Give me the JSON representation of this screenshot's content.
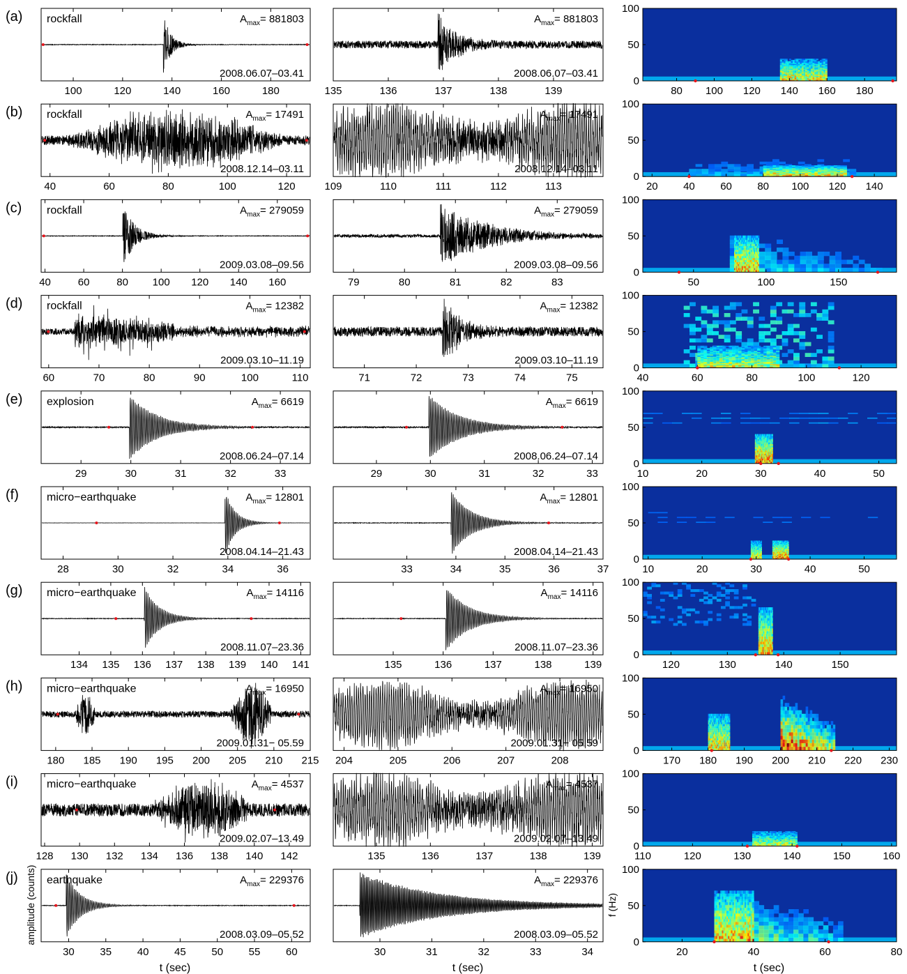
{
  "figure": {
    "ylabel_amplitude": "amplitude (counts)",
    "ylabel_freq": "f (Hz)",
    "xlabel": "t (sec)",
    "amax_prefix": "A",
    "amax_sub": "max"
  },
  "colors": {
    "trace": "#000000",
    "marker": "#e8141b",
    "spec_bg": "#0a2f9e",
    "axis": "#000000"
  },
  "chart_data": [
    {
      "panel": "(a)",
      "type": "line",
      "label": "rockfall",
      "amax": "= 881803",
      "date": "2008.06.07–03.41",
      "full": {
        "xlim": [
          87,
          196
        ],
        "ticks": [
          100,
          120,
          140,
          160,
          180
        ],
        "onset": 136.5,
        "dur": 10,
        "pre": 0.01,
        "style": "spike",
        "markers": [
          87.5,
          195
        ]
      },
      "zoom": {
        "xlim": [
          135,
          139.9
        ],
        "ticks": [
          135,
          136,
          137,
          138,
          139
        ],
        "onset": 136.9,
        "dur": 1,
        "pre": 0.12,
        "style": "spike"
      },
      "spec": {
        "xlim": [
          62,
          197
        ],
        "ylim": [
          0,
          100
        ],
        "xticks": [
          80,
          100,
          120,
          140,
          160,
          180
        ],
        "yticks": [
          0,
          50,
          100
        ],
        "markers": [
          90,
          195
        ],
        "blobs": [
          [
            128,
            197,
            0,
            100,
            0.15,
            "wedge"
          ],
          [
            135,
            160,
            0,
            30,
            0.8,
            "hot"
          ]
        ]
      }
    },
    {
      "panel": "(b)",
      "type": "line",
      "label": "rockfall",
      "amax": "= 17491",
      "date": "2008.12.14–03.11",
      "full": {
        "xlim": [
          37,
          128
        ],
        "ticks": [
          40,
          60,
          80,
          100,
          120
        ],
        "onset": 45,
        "dur": 75,
        "pre": 0.15,
        "style": "tremor",
        "markers": [
          38,
          127
        ]
      },
      "zoom": {
        "xlim": [
          109,
          113.9
        ],
        "ticks": [
          109,
          110,
          111,
          112,
          113
        ],
        "onset": 109,
        "dur": 5,
        "pre": 0.5,
        "style": "osc"
      },
      "spec": {
        "xlim": [
          15,
          152
        ],
        "ylim": [
          0,
          100
        ],
        "xticks": [
          20,
          40,
          60,
          80,
          100,
          120,
          140
        ],
        "yticks": [
          0,
          50,
          100
        ],
        "markers": [
          40,
          128
        ],
        "blobs": [
          [
            40,
            130,
            0,
            60,
            0.3,
            "band"
          ],
          [
            80,
            125,
            0,
            15,
            0.85,
            "hot"
          ]
        ]
      }
    },
    {
      "panel": "(c)",
      "type": "line",
      "label": "rockfall",
      "amax": "= 279059",
      "date": "2009.03.08–09.56",
      "full": {
        "xlim": [
          38,
          177
        ],
        "ticks": [
          40,
          60,
          80,
          100,
          120,
          140,
          160
        ],
        "onset": 80,
        "dur": 20,
        "pre": 0.01,
        "style": "spike",
        "markers": [
          39,
          176
        ]
      },
      "zoom": {
        "xlim": [
          78.6,
          83.9
        ],
        "ticks": [
          79,
          80,
          81,
          82,
          83
        ],
        "onset": 80.7,
        "dur": 3,
        "pre": 0.05,
        "style": "spike"
      },
      "spec": {
        "xlim": [
          15,
          190
        ],
        "ylim": [
          0,
          100
        ],
        "xticks": [
          50,
          100,
          150
        ],
        "yticks": [
          0,
          50,
          100
        ],
        "markers": [
          40,
          177
        ],
        "blobs": [
          [
            75,
            180,
            0,
            100,
            0.35,
            "wedge"
          ],
          [
            78,
            95,
            0,
            50,
            0.9,
            "hot"
          ]
        ]
      }
    },
    {
      "panel": "(d)",
      "type": "line",
      "label": "rockfall",
      "amax": "= 12382",
      "date": "2009.03.10–11.19",
      "full": {
        "xlim": [
          58.5,
          112
        ],
        "ticks": [
          60,
          70,
          80,
          90,
          100,
          110
        ],
        "onset": 65,
        "dur": 20,
        "pre": 0.1,
        "style": "bursts",
        "markers": [
          59.8,
          111
        ]
      },
      "zoom": {
        "xlim": [
          70.4,
          75.6
        ],
        "ticks": [
          71,
          72,
          73,
          74,
          75
        ],
        "onset": 72.5,
        "dur": 1.2,
        "pre": 0.15,
        "style": "spike"
      },
      "spec": {
        "xlim": [
          40,
          133
        ],
        "ylim": [
          0,
          100
        ],
        "xticks": [
          40,
          60,
          80,
          100,
          120
        ],
        "yticks": [
          0,
          50,
          100
        ],
        "markers": [
          60,
          112
        ],
        "blobs": [
          [
            55,
            110,
            0,
            90,
            0.45,
            "streaks"
          ],
          [
            60,
            90,
            0,
            30,
            0.75,
            "hot"
          ]
        ]
      }
    },
    {
      "panel": "(e)",
      "type": "line",
      "label": "explosion",
      "amax": "= 6619",
      "date": "2008.06.24–07.14",
      "full": {
        "xlim": [
          28.2,
          33.6
        ],
        "ticks": [
          29,
          30,
          31,
          32,
          33
        ],
        "onset": 29.97,
        "dur": 1.8,
        "pre": 0.02,
        "style": "decay",
        "markers": [
          29.55,
          32.45
        ]
      },
      "zoom": {
        "xlim": [
          28.2,
          33.2
        ],
        "ticks": [
          29,
          30,
          31,
          32,
          33
        ],
        "onset": 29.97,
        "dur": 1.8,
        "pre": 0.02,
        "style": "decay",
        "markers": [
          29.55,
          32.45
        ]
      },
      "spec": {
        "xlim": [
          10,
          53
        ],
        "ylim": [
          0,
          100
        ],
        "xticks": [
          10,
          20,
          30,
          40,
          50
        ],
        "yticks": [
          0,
          50,
          100
        ],
        "markers": [
          30,
          33
        ],
        "blobs": [
          [
            29,
            32,
            0,
            40,
            0.95,
            "hot"
          ],
          [
            10,
            53,
            55,
            75,
            0.3,
            "lines"
          ]
        ]
      }
    },
    {
      "panel": "(f)",
      "type": "line",
      "label": "micro−earthquake",
      "amax": "= 12801",
      "date": "2008.04.14–21.43",
      "full": {
        "xlim": [
          27.2,
          37
        ],
        "ticks": [
          28,
          30,
          32,
          34,
          36
        ],
        "onset": 33.9,
        "dur": 1.2,
        "pre": 0.003,
        "style": "decay",
        "markers": [
          29.2,
          35.9
        ]
      },
      "zoom": {
        "xlim": [
          31.5,
          37
        ],
        "ticks": [
          33,
          34,
          35,
          36,
          37
        ],
        "onset": 33.9,
        "dur": 1.3,
        "pre": 0.01,
        "style": "decay",
        "markers": [
          35.9
        ]
      },
      "spec": {
        "xlim": [
          9,
          56
        ],
        "ylim": [
          0,
          100
        ],
        "xticks": [
          10,
          20,
          30,
          40,
          50
        ],
        "yticks": [
          0,
          50,
          100
        ],
        "markers": [
          29,
          36
        ],
        "blobs": [
          [
            29,
            31,
            0,
            25,
            0.8,
            "hot"
          ],
          [
            33,
            36,
            0,
            25,
            0.95,
            "hot"
          ],
          [
            10,
            56,
            50,
            70,
            0.25,
            "lines"
          ]
        ]
      }
    },
    {
      "panel": "(g)",
      "type": "line",
      "label": "micro−earthquake",
      "amax": "= 14116",
      "date": "2008.11.07–23.36",
      "full": {
        "xlim": [
          132.8,
          141.3
        ],
        "ticks": [
          134,
          135,
          136,
          137,
          138,
          139,
          140,
          141
        ],
        "onset": 136.05,
        "dur": 1.5,
        "pre": 0.01,
        "style": "decay",
        "markers": [
          135.15,
          139.45
        ]
      },
      "zoom": {
        "xlim": [
          133.8,
          139.2
        ],
        "ticks": [
          135,
          136,
          137,
          138,
          139
        ],
        "onset": 136.05,
        "dur": 1.5,
        "pre": 0.01,
        "style": "decay",
        "markers": [
          135.15
        ]
      },
      "spec": {
        "xlim": [
          115,
          160
        ],
        "ylim": [
          0,
          100
        ],
        "xticks": [
          120,
          130,
          140,
          150
        ],
        "yticks": [
          0,
          50,
          100
        ],
        "markers": [
          135,
          139
        ],
        "blobs": [
          [
            135.5,
            138,
            0,
            65,
            0.9,
            "hot"
          ],
          [
            115,
            135,
            40,
            100,
            0.3,
            "streaks"
          ]
        ]
      }
    },
    {
      "panel": "(h)",
      "type": "line",
      "label": "micro−earthquake",
      "amax": "= 16950",
      "date": "2009.01.31− 05.59",
      "full": {
        "xlim": [
          178,
          215
        ],
        "ticks": [
          180,
          185,
          190,
          195,
          200,
          205,
          210,
          215
        ],
        "onset": 202,
        "dur": 10,
        "pre": 0.1,
        "style": "twin",
        "markers": [
          180.2,
          213.5
        ]
      },
      "zoom": {
        "xlim": [
          203.8,
          208.8
        ],
        "ticks": [
          204,
          205,
          206,
          207,
          208
        ],
        "onset": 203.8,
        "dur": 5,
        "pre": 0.3,
        "style": "osc"
      },
      "spec": {
        "xlim": [
          162,
          232
        ],
        "ylim": [
          0,
          100
        ],
        "xticks": [
          170,
          180,
          190,
          200,
          210,
          220,
          230
        ],
        "yticks": [
          0,
          50,
          100
        ],
        "markers": [
          181,
          214
        ],
        "blobs": [
          [
            180,
            186,
            0,
            50,
            0.85,
            "hot"
          ],
          [
            200,
            215,
            0,
            90,
            0.8,
            "wedge"
          ]
        ]
      }
    },
    {
      "panel": "(i)",
      "type": "line",
      "label": "micro−earthquake",
      "amax": "= 4537",
      "date": "2009.02.07–13.49",
      "full": {
        "xlim": [
          127.8,
          143.2
        ],
        "ticks": [
          128,
          130,
          132,
          134,
          136,
          138,
          140,
          142
        ],
        "onset": 134,
        "dur": 6,
        "pre": 0.2,
        "style": "tremor",
        "markers": [
          129.8,
          141.2
        ]
      },
      "zoom": {
        "xlim": [
          134.2,
          139.2
        ],
        "ticks": [
          135,
          136,
          137,
          138,
          139
        ],
        "onset": 134.2,
        "dur": 5,
        "pre": 0.45,
        "style": "osc"
      },
      "spec": {
        "xlim": [
          110,
          161
        ],
        "ylim": [
          0,
          100
        ],
        "xticks": [
          110,
          120,
          130,
          140,
          150,
          160
        ],
        "yticks": [
          0,
          50,
          100
        ],
        "markers": [
          131,
          141
        ],
        "blobs": [
          [
            132,
            141,
            0,
            20,
            0.75,
            "hot"
          ]
        ]
      }
    },
    {
      "panel": "(j)",
      "type": "line",
      "label": "earthquake",
      "amax": "= 229376",
      "date": "2008.03.09–05.52",
      "full": {
        "xlim": [
          26.3,
          62.5
        ],
        "ticks": [
          30,
          35,
          40,
          45,
          50,
          55,
          60
        ],
        "onset": 29.6,
        "dur": 6,
        "pre": 0.01,
        "style": "decay",
        "markers": [
          28.2,
          60.4
        ]
      },
      "zoom": {
        "xlim": [
          29.1,
          34.3
        ],
        "ticks": [
          30,
          31,
          32,
          33,
          34
        ],
        "onset": 29.6,
        "dur": 5,
        "pre": 0.01,
        "style": "coda"
      },
      "spec": {
        "xlim": [
          9,
          80
        ],
        "ylim": [
          0,
          100
        ],
        "xticks": [
          20,
          40,
          60,
          80
        ],
        "yticks": [
          0,
          50,
          100
        ],
        "markers": [
          29,
          61
        ],
        "blobs": [
          [
            29,
            65,
            0,
            100,
            0.5,
            "wedge"
          ],
          [
            29,
            40,
            0,
            70,
            0.9,
            "hot"
          ]
        ]
      }
    }
  ]
}
